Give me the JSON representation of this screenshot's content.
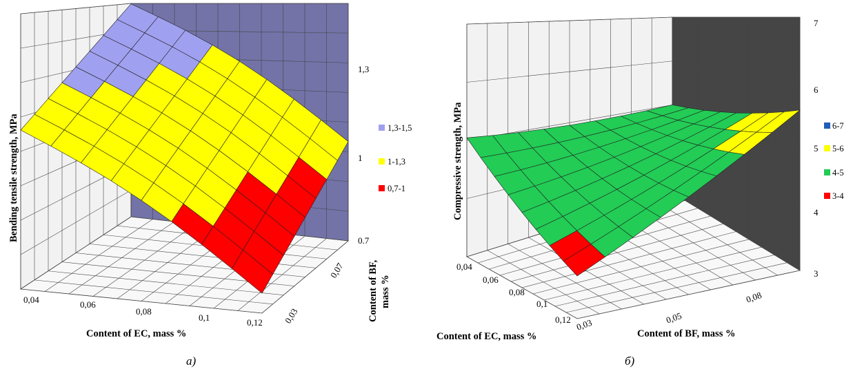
{
  "colors": {
    "light_wall": "#f2f2f2",
    "back_wall_a": "#7373a8",
    "back_wall_b": "#454545",
    "floor": "#f8f8f8",
    "lavender": "#a0a0f0",
    "yellow": "#ffff00",
    "red": "#ff0000",
    "green": "#22cc55",
    "blue": "#1d5fb8"
  },
  "chart_data": [
    {
      "type": "surface",
      "panel_label": "а)",
      "xlabel": "Content of EC, mass %",
      "ylabel": "Content of BF,\nmass %",
      "zlabel": "Bending tensile strength, MPa",
      "x_ticks": [
        "0,04",
        "0,06",
        "0,08",
        "0,1",
        "0,12"
      ],
      "y_ticks": [
        "0,03",
        "0,07"
      ],
      "z_ticks": [
        "0.7",
        "1",
        "1,3"
      ],
      "zlim": [
        0.7,
        1.5
      ],
      "legend": [
        {
          "label": "1,3-1,5",
          "color": "#a0a0f0"
        },
        {
          "label": "1-1,3",
          "color": "#ffff00"
        },
        {
          "label": "0,7-1",
          "color": "#ff0000"
        }
      ],
      "surface_corners_z": {
        "ec_0.04_bf_0.03": 1.26,
        "ec_0.04_bf_0.07": 1.45,
        "ec_0.12_bf_0.03": 0.77,
        "ec_0.12_bf_0.07": 1.05
      }
    },
    {
      "type": "surface",
      "panel_label": "б)",
      "xlabel": "Content of EC, mass %",
      "ylabel": "Content of BF, mass %",
      "zlabel": "Compressive strength, MPa",
      "x_ticks": [
        "0,04",
        "0,06",
        "0,08",
        "0,1",
        "0,12"
      ],
      "y_ticks": [
        "0,03",
        "0,05",
        "0,08"
      ],
      "z_ticks": [
        "3",
        "4",
        "5",
        "6",
        "7"
      ],
      "zlim": [
        3,
        7
      ],
      "legend": [
        {
          "label": "6-7",
          "color": "#1d5fb8"
        },
        {
          "label": "5-6",
          "color": "#ffff00"
        },
        {
          "label": "4-5",
          "color": "#22cc55"
        },
        {
          "label": "3-4",
          "color": "#ff0000"
        }
      ],
      "surface_corners_z": {
        "ec_0.04_bf_0.03": 4.8,
        "ec_0.04_bf_0.08": 4.3,
        "ec_0.12_bf_0.03": 3.5,
        "ec_0.12_bf_0.08": 5.4
      }
    }
  ]
}
